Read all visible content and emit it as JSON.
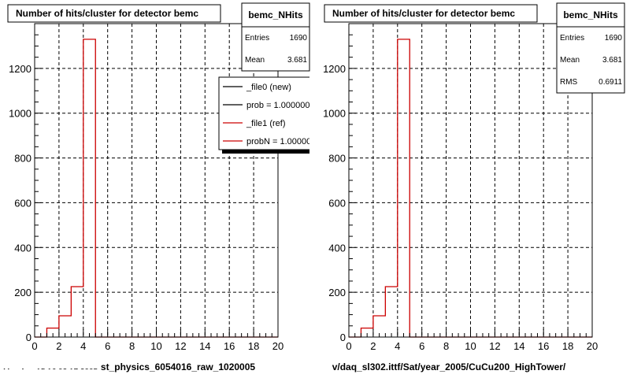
{
  "colors": {
    "background": "#ffffff",
    "frame": "#000000",
    "grid": "#000000",
    "new_line": "#000000",
    "ref_line": "#cc0000",
    "shadow": "#000000"
  },
  "footer_timestamp": "Mon Aug 15 16:03:17 2005",
  "legend": {
    "entries": [
      {
        "label": "_file0 (new)",
        "color": "#000000"
      },
      {
        "label": "prob = 1.000000",
        "color": "#000000"
      },
      {
        "label": "_file1 (ref)",
        "color": "#cc0000"
      },
      {
        "label": "probN = 1.000000",
        "color": "#cc0000"
      }
    ]
  },
  "chart_data": [
    {
      "type": "histogram",
      "title": "Number of hits/cluster for detector bemc",
      "xlabel": "st_physics_6054016_raw_1020005",
      "ylabel": "",
      "xlim": [
        0,
        20
      ],
      "ylim": [
        0,
        1400
      ],
      "xticks": [
        0,
        2,
        4,
        6,
        8,
        10,
        12,
        14,
        16,
        18,
        20
      ],
      "yticks": [
        0,
        200,
        400,
        600,
        800,
        1000,
        1200
      ],
      "grid": true,
      "bin_edges": [
        1,
        2,
        3,
        4,
        5
      ],
      "series": [
        {
          "values": [
            40,
            95,
            225,
            1330
          ],
          "color": "#cc0000"
        }
      ],
      "stats": {
        "name": "bemc_NHits",
        "rows": [
          {
            "label": "Entries",
            "value": "1690"
          },
          {
            "label": "Mean",
            "value": "3.681"
          }
        ]
      }
    },
    {
      "type": "histogram",
      "title": "Number of hits/cluster for detector bemc",
      "xlabel": "v/daq_sl302.ittf/Sat/year_2005/CuCu200_HighTower/",
      "ylabel": "",
      "xlim": [
        0,
        20
      ],
      "ylim": [
        0,
        1400
      ],
      "xticks": [
        0,
        2,
        4,
        6,
        8,
        10,
        12,
        14,
        16,
        18,
        20
      ],
      "yticks": [
        0,
        200,
        400,
        600,
        800,
        1000,
        1200
      ],
      "grid": true,
      "bin_edges": [
        1,
        2,
        3,
        4,
        5
      ],
      "series": [
        {
          "values": [
            40,
            95,
            225,
            1330
          ],
          "color": "#cc0000"
        }
      ],
      "stats": {
        "name": "bemc_NHits",
        "rows": [
          {
            "label": "Entries",
            "value": "1690"
          },
          {
            "label": "Mean",
            "value": "3.681"
          },
          {
            "label": "RMS",
            "value": "0.6911"
          }
        ]
      }
    }
  ]
}
